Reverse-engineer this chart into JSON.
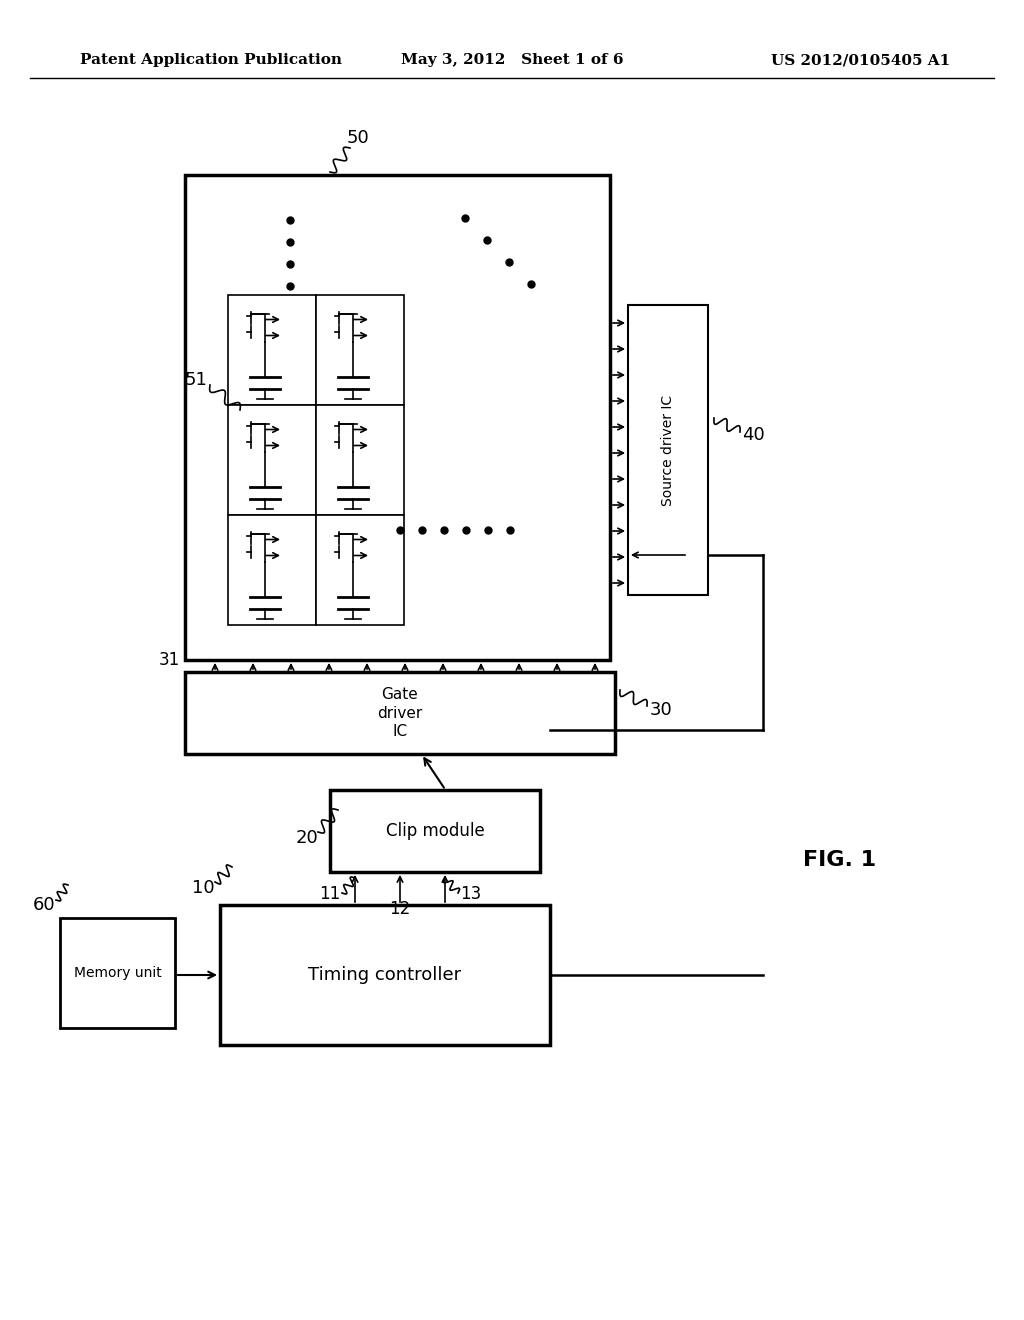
{
  "bg_color": "#ffffff",
  "header_left": "Patent Application Publication",
  "header_mid": "May 3, 2012   Sheet 1 of 6",
  "header_right": "US 2012/0105405 A1",
  "fig_label": "FIG. 1",
  "label_50": "50",
  "label_51": "51",
  "label_40": "40",
  "label_30": "30",
  "label_31": "31",
  "label_20": "20",
  "label_10": "10",
  "label_11": "11",
  "label_12": "12",
  "label_13": "13",
  "label_60": "60",
  "line_color": "#000000",
  "text_color": "#000000"
}
